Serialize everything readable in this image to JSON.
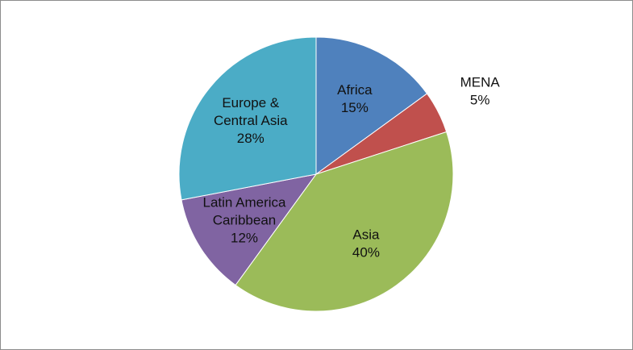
{
  "chart_data": {
    "type": "pie",
    "title": "",
    "slices": [
      {
        "name_lines": [
          "Africa"
        ],
        "value_label": "15%",
        "value": 15,
        "color": "#4f81bd",
        "label_outside": false
      },
      {
        "name_lines": [
          "MENA"
        ],
        "value_label": "5%",
        "value": 5,
        "color": "#c0504d",
        "label_outside": true
      },
      {
        "name_lines": [
          "Asia"
        ],
        "value_label": "40%",
        "value": 40,
        "color": "#9bbb59",
        "label_outside": false
      },
      {
        "name_lines": [
          "Latin America",
          "Caribbean"
        ],
        "value_label": "12%",
        "value": 12,
        "color": "#8064a2",
        "label_outside": false
      },
      {
        "name_lines": [
          "Europe &",
          "Central Asia"
        ],
        "value_label": "28%",
        "value": 28,
        "color": "#4bacc6",
        "label_outside": false
      }
    ]
  }
}
